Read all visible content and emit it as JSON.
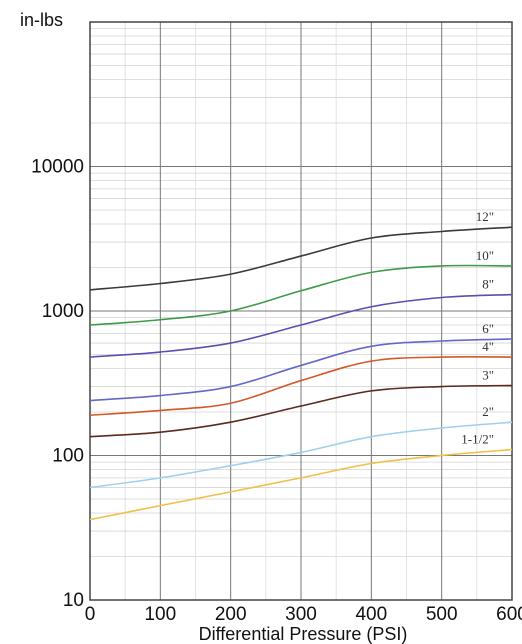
{
  "chart_data": {
    "type": "line",
    "title": "",
    "ylabel": "in-lbs",
    "xlabel": "Differential Pressure (PSI)",
    "y_scale": "log",
    "grid": true,
    "xlim": [
      0,
      600
    ],
    "ylim": [
      10,
      100000
    ],
    "x_ticks": [
      "0",
      "100",
      "200",
      "300",
      "400",
      "500",
      "600"
    ],
    "y_ticks": [
      {
        "value": 10,
        "label": "10"
      },
      {
        "value": 100,
        "label": "100"
      },
      {
        "value": 1000,
        "label": "1000"
      },
      {
        "value": 10000,
        "label": "10000"
      }
    ],
    "series": [
      {
        "name": "12\"",
        "color": "#3a3a3a",
        "x": [
          0,
          100,
          200,
          300,
          400,
          500,
          600
        ],
        "values": [
          1400,
          1550,
          1800,
          2400,
          3200,
          3550,
          3800
        ]
      },
      {
        "name": "10\"",
        "color": "#3f9a48",
        "x": [
          0,
          100,
          200,
          300,
          400,
          500,
          600
        ],
        "values": [
          800,
          870,
          1000,
          1380,
          1850,
          2050,
          2050
        ]
      },
      {
        "name": "8\"",
        "color": "#5a4fb0",
        "x": [
          0,
          100,
          200,
          300,
          400,
          500,
          600
        ],
        "values": [
          480,
          520,
          600,
          800,
          1070,
          1240,
          1300
        ]
      },
      {
        "name": "6\"",
        "color": "#6468c8",
        "x": [
          0,
          100,
          200,
          300,
          400,
          500,
          600
        ],
        "values": [
          240,
          260,
          300,
          420,
          570,
          620,
          640
        ]
      },
      {
        "name": "4\"",
        "color": "#d5572a",
        "x": [
          0,
          100,
          200,
          300,
          400,
          500,
          600
        ],
        "values": [
          190,
          205,
          230,
          330,
          450,
          480,
          480
        ]
      },
      {
        "name": "3\"",
        "color": "#5b2a1e",
        "x": [
          0,
          100,
          200,
          300,
          400,
          500,
          600
        ],
        "values": [
          135,
          145,
          170,
          220,
          280,
          300,
          305
        ]
      },
      {
        "name": "2\"",
        "color": "#9ed0ee",
        "x": [
          0,
          100,
          200,
          300,
          400,
          500,
          600
        ],
        "values": [
          60,
          70,
          85,
          105,
          135,
          155,
          170
        ]
      },
      {
        "name": "1-1/2\"",
        "color": "#f0bf45",
        "x": [
          0,
          100,
          200,
          300,
          400,
          500,
          600
        ],
        "values": [
          36,
          45,
          56,
          70,
          88,
          100,
          110
        ]
      }
    ]
  }
}
